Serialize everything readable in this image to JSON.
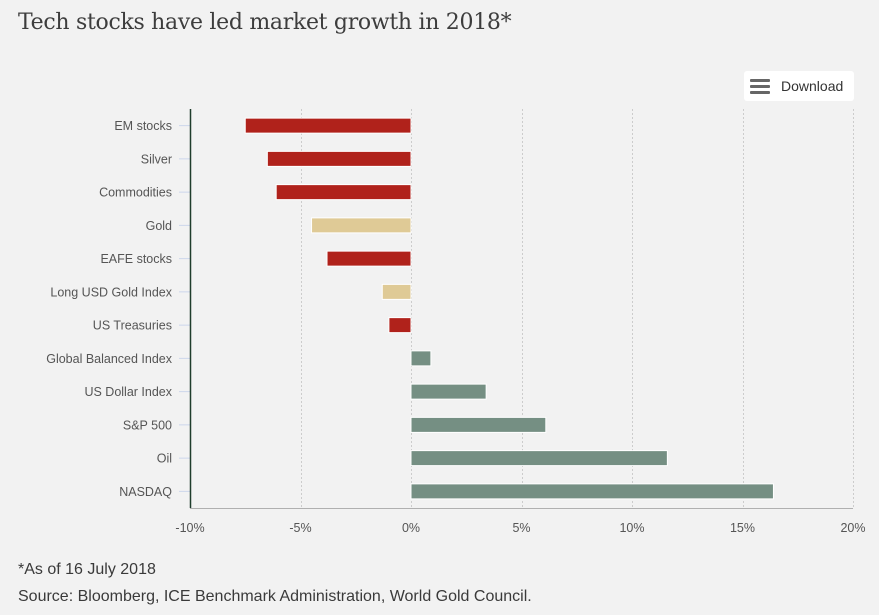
{
  "page": {
    "title": "Tech stocks have led market growth in 2018*",
    "download_label": "Download",
    "download_icon": "menu-icon",
    "footnote": "*As of 16 July 2018",
    "source": "Source: Bloomberg, ICE Benchmark Administration, World Gold Council."
  },
  "colors": {
    "negative": "#b0221b",
    "gold": "#dfca96",
    "positive": "#758f83",
    "axis_line": "#1f3d2c",
    "grid": "#cccccc",
    "tick_label": "#555555",
    "category_label": "#555555"
  },
  "chart_data": {
    "type": "bar",
    "orientation": "horizontal",
    "title": "Tech stocks have led market growth in 2018*",
    "xlabel": "",
    "ylabel": "",
    "xlim": [
      -10,
      20
    ],
    "x_ticks": [
      -10,
      -5,
      0,
      5,
      10,
      15,
      20
    ],
    "x_tick_labels": [
      "-10%",
      "-5%",
      "0%",
      "5%",
      "10%",
      "15%",
      "20%"
    ],
    "grid": "vertical dotted",
    "legend": "none",
    "categories": [
      "EM stocks",
      "Silver",
      "Commodities",
      "Gold",
      "EAFE stocks",
      "Long USD Gold Index",
      "US Treasuries",
      "Global Balanced Index",
      "US Dollar Index",
      "S&P 500",
      "Oil",
      "NASDAQ"
    ],
    "values": [
      -7.5,
      -6.5,
      -6.1,
      -4.5,
      -3.8,
      -1.3,
      -1.0,
      0.9,
      3.4,
      6.1,
      11.6,
      16.4
    ],
    "bar_color_keys": [
      "negative",
      "negative",
      "negative",
      "gold",
      "negative",
      "gold",
      "negative",
      "positive",
      "positive",
      "positive",
      "positive",
      "positive"
    ],
    "unit": "%"
  }
}
